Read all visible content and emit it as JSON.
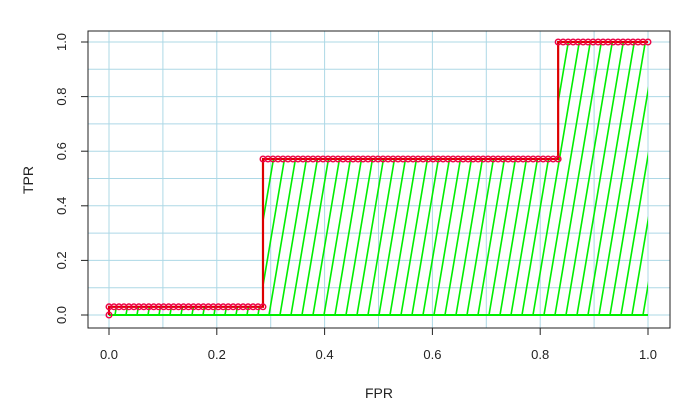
{
  "chart_data": {
    "type": "line",
    "title": "",
    "xlabel": "FPR",
    "ylabel": "TPR",
    "xlim": [
      0,
      1
    ],
    "ylim": [
      0,
      1
    ],
    "x_ticks": [
      "0.0",
      "0.2",
      "0.4",
      "0.6",
      "0.8",
      "1.0"
    ],
    "y_ticks": [
      "0.0",
      "0.2",
      "0.4",
      "0.6",
      "0.8",
      "1.0"
    ],
    "grid": true,
    "series": [
      {
        "points": [
          {
            "x": 0.0,
            "y": 0.0
          },
          {
            "x": 0.0,
            "y": 0.03
          },
          {
            "x": 0.2857,
            "y": 0.03
          },
          {
            "x": 0.2857,
            "y": 0.5714
          },
          {
            "x": 0.8333,
            "y": 0.5714
          },
          {
            "x": 0.8333,
            "y": 1.0
          },
          {
            "x": 1.0,
            "y": 1.0
          }
        ],
        "fill": "hatched",
        "line_color": "#dd0000",
        "fill_color": "#00ee00",
        "marker_color": "#ee0044"
      }
    ],
    "grid_color": "#add8e6"
  }
}
